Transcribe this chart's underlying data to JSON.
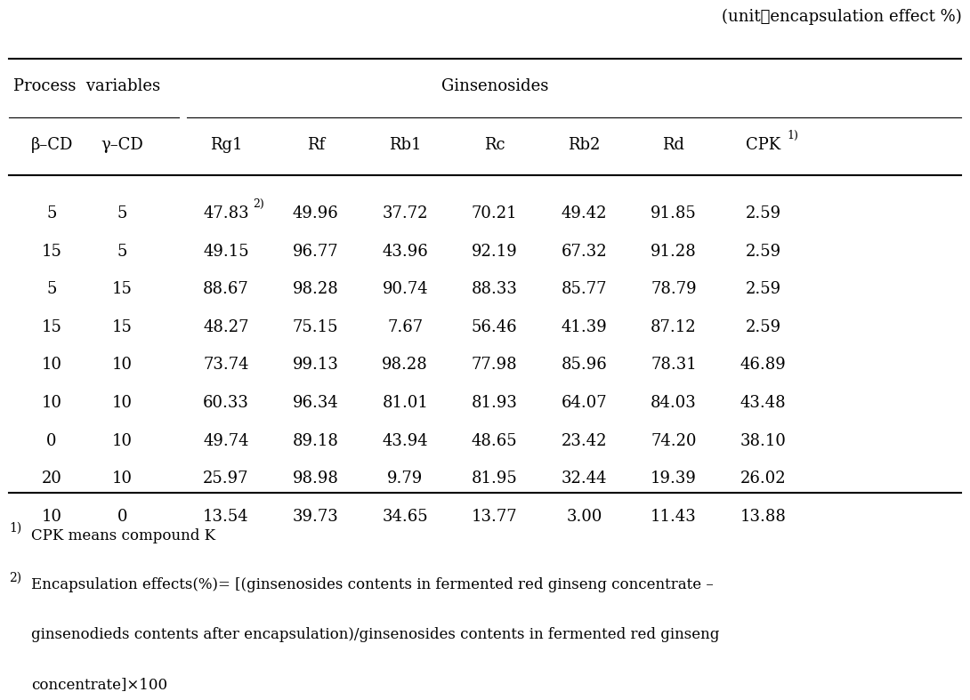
{
  "unit_text": "(unit：encapsulation effect %)",
  "col_headers": [
    "β–CD",
    "γ–CD",
    "Rg1",
    "Rf",
    "Rb1",
    "Rc",
    "Rb2",
    "Rd",
    "CPK"
  ],
  "rows": [
    [
      "5",
      "5",
      "47.83",
      "49.96",
      "37.72",
      "70.21",
      "49.42",
      "91.85",
      "2.59"
    ],
    [
      "15",
      "5",
      "49.15",
      "96.77",
      "43.96",
      "92.19",
      "67.32",
      "91.28",
      "2.59"
    ],
    [
      "5",
      "15",
      "88.67",
      "98.28",
      "90.74",
      "88.33",
      "85.77",
      "78.79",
      "2.59"
    ],
    [
      "15",
      "15",
      "48.27",
      "75.15",
      "7.67",
      "56.46",
      "41.39",
      "87.12",
      "2.59"
    ],
    [
      "10",
      "10",
      "73.74",
      "99.13",
      "98.28",
      "77.98",
      "85.96",
      "78.31",
      "46.89"
    ],
    [
      "10",
      "10",
      "60.33",
      "96.34",
      "81.01",
      "81.93",
      "64.07",
      "84.03",
      "43.48"
    ],
    [
      "0",
      "10",
      "49.74",
      "89.18",
      "43.94",
      "48.65",
      "23.42",
      "74.20",
      "38.10"
    ],
    [
      "20",
      "10",
      "25.97",
      "98.98",
      "9.79",
      "81.95",
      "32.44",
      "19.39",
      "26.02"
    ],
    [
      "10",
      "0",
      "13.54",
      "39.73",
      "34.65",
      "13.77",
      "3.00",
      "11.43",
      "13.88"
    ]
  ],
  "footnote_line1": "CPK means compound K",
  "footnote_line2": "Encapsulation effects(%)= [(ginsenosides contents in fermented red ginseng concentrate –",
  "footnote_line3": "ginsenodieds contents after encapsulation)/ginsenosides contents in fermented red ginseng",
  "footnote_line4": "concentrate]×100",
  "bg_color": "#ffffff",
  "text_color": "#000000",
  "font_size": 13,
  "fn_font_size": 12
}
